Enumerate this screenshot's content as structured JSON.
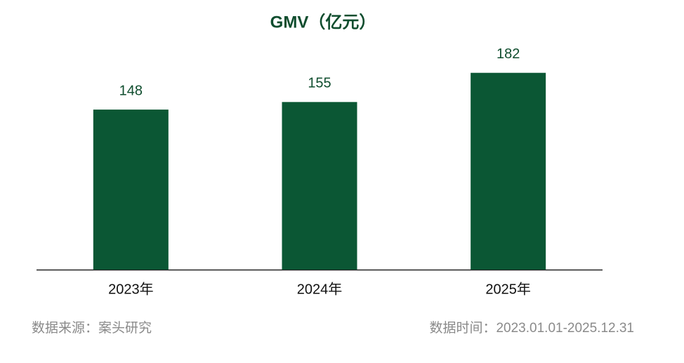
{
  "chart_data": {
    "type": "bar",
    "title": "GMV（亿元）",
    "categories": [
      "2023年",
      "2024年",
      "2025年"
    ],
    "values": [
      148,
      155,
      182
    ],
    "color": "#0b5734",
    "ylim": [
      0,
      200
    ],
    "grid": false,
    "source": "数据来源：案头研究",
    "date_range": "数据时间：2023.01.01-2025.12.31"
  }
}
